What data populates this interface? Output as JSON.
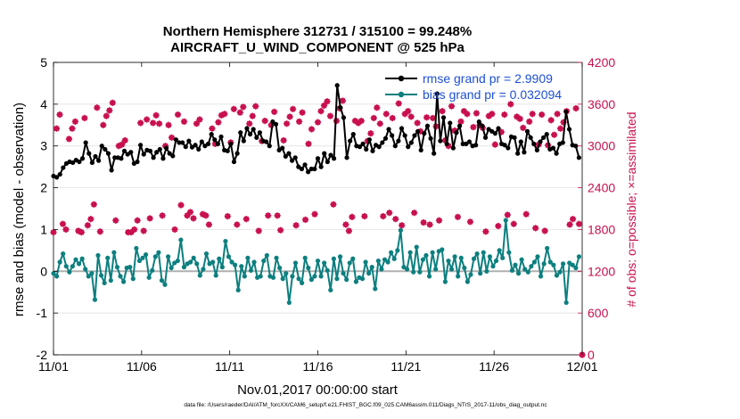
{
  "chart_data": {
    "type": "line",
    "title": "Northern Hemisphere 312731 / 315100 = 99.248%",
    "subtitle": "AIRCRAFT_U_WIND_COMPONENT @ 525 hPa",
    "xlabel": "Nov.01,2017 00:00:00 start",
    "ylabel": "rmse and bias (model - observation)",
    "y2label": "# of obs: o=possible; ×=assimilated",
    "footer": "data file: /Users/raeder/DAI/ATM_forcXX/CAM6_setup/f.e21.FHIST_BGC.f09_025.CAM6assim.011/Diags_NTrS_2017-11/obs_diag_output.nc",
    "x_ticks": [
      {
        "value": 0,
        "label": "11/01"
      },
      {
        "value": 5,
        "label": "11/06"
      },
      {
        "value": 10,
        "label": "11/11"
      },
      {
        "value": 15,
        "label": "11/16"
      },
      {
        "value": 20,
        "label": "11/21"
      },
      {
        "value": 25,
        "label": "11/26"
      },
      {
        "value": 30,
        "label": "12/01"
      }
    ],
    "y_ticks": [
      {
        "value": -2,
        "label": "-2"
      },
      {
        "value": -1,
        "label": "-1"
      },
      {
        "value": 0,
        "label": "0"
      },
      {
        "value": 1,
        "label": "1"
      },
      {
        "value": 2,
        "label": "2"
      },
      {
        "value": 3,
        "label": "3"
      },
      {
        "value": 4,
        "label": "4"
      },
      {
        "value": 5,
        "label": "5"
      }
    ],
    "y2_ticks": [
      {
        "value": 0,
        "label": "0"
      },
      {
        "value": 600,
        "label": "600"
      },
      {
        "value": 1200,
        "label": "1200"
      },
      {
        "value": 1800,
        "label": "1800"
      },
      {
        "value": 2400,
        "label": "2400"
      },
      {
        "value": 3000,
        "label": "3000"
      },
      {
        "value": 3600,
        "label": "3600"
      },
      {
        "value": 4200,
        "label": "4200"
      }
    ],
    "xlim": [
      0,
      30
    ],
    "ylim": [
      -2,
      5
    ],
    "y2lim": [
      0,
      4200
    ],
    "legend_position": "top-right",
    "colors": {
      "rmse": "#000000",
      "bias": "#0d7f7f",
      "obs": "#c8104f",
      "zero_line": "#b0b0b0",
      "grid": "#dddddd",
      "legend_text": "#1d4fd6"
    },
    "series": [
      {
        "name": "rmse grand pr = 2.9909",
        "key": "rmse",
        "values": [
          2.28,
          2.25,
          2.32,
          2.48,
          2.58,
          2.62,
          2.6,
          2.66,
          2.62,
          2.7,
          3.08,
          2.82,
          2.6,
          2.75,
          2.65,
          3.0,
          2.92,
          2.82,
          2.42,
          2.72,
          2.72,
          2.7,
          2.88,
          2.8,
          2.85,
          2.58,
          2.62,
          3.02,
          2.8,
          2.9,
          2.88,
          2.72,
          2.85,
          2.92,
          2.7,
          2.95,
          2.82,
          2.76,
          3.15,
          3.08,
          3.08,
          2.98,
          3.12,
          2.97,
          3.02,
          2.92,
          3.1,
          3.0,
          3.05,
          3.28,
          3.15,
          3.05,
          3.22,
          2.9,
          2.88,
          3.05,
          2.62,
          2.82,
          3.32,
          3.12,
          3.42,
          3.28,
          3.4,
          3.2,
          3.32,
          3.12,
          3.1,
          3.0,
          3.58,
          3.52,
          2.9,
          2.95,
          2.75,
          2.82,
          2.65,
          2.72,
          2.5,
          2.45,
          2.55,
          2.38,
          2.45,
          2.45,
          2.7,
          2.5,
          2.82,
          2.62,
          2.78,
          2.7,
          4.45,
          3.92,
          3.68,
          2.72,
          3.12,
          3.28,
          3.0,
          2.98,
          3.05,
          2.92,
          3.15,
          2.88,
          3.02,
          2.98,
          3.08,
          3.18,
          3.4,
          3.25,
          3.0,
          3.12,
          3.42,
          3.25,
          2.98,
          3.08,
          3.25,
          3.35,
          2.9,
          3.3,
          3.48,
          3.18,
          2.82,
          4.25,
          3.12,
          3.68,
          3.05,
          3.55,
          2.95,
          3.32,
          3.48,
          3.05,
          3.05,
          3.1,
          3.0,
          3.02,
          3.58,
          3.48,
          3.2,
          3.4,
          3.35,
          3.3,
          3.42,
          3.05,
          3.02,
          2.95,
          3.22,
          3.2,
          2.82,
          3.1,
          2.85,
          3.35,
          3.2,
          3.05,
          2.9,
          3.1,
          3.2,
          3.28,
          2.92,
          2.95,
          2.82,
          3.05,
          3.08,
          3.82,
          3.4,
          3.02,
          3.0,
          2.72
        ]
      },
      {
        "name": "bias grand pr = 0.032094",
        "key": "bias",
        "values": [
          -0.05,
          -0.12,
          0.22,
          0.42,
          0.12,
          -0.02,
          0.12,
          0.28,
          0.18,
          0.3,
          0.05,
          -0.12,
          -0.05,
          -0.68,
          0.38,
          -0.1,
          -0.28,
          0.32,
          -0.22,
          0.45,
          0.1,
          -0.12,
          -0.25,
          0.08,
          0.1,
          -0.18,
          0.55,
          0.25,
          0.32,
          0.4,
          -0.15,
          0.02,
          0.35,
          0.45,
          -0.22,
          -0.32,
          0.35,
          0.08,
          0.2,
          0.25,
          0.75,
          0.1,
          0.18,
          0.22,
          0.32,
          0.18,
          -0.1,
          0.05,
          0.42,
          0.18,
          0.22,
          -0.1,
          0.3,
          0.1,
          0.72,
          0.35,
          0.22,
          0.15,
          -0.45,
          0.12,
          -0.12,
          0.32,
          0.02,
          0.22,
          -0.15,
          -0.12,
          0.25,
          0.38,
          -0.12,
          -0.15,
          0.32,
          0.08,
          -0.18,
          -0.05,
          -0.75,
          -0.12,
          0.2,
          -0.18,
          -0.28,
          0.32,
          0.08,
          -0.2,
          -0.12,
          0.25,
          -0.12,
          0.2,
          0.02,
          -0.45,
          0.3,
          -0.18,
          0.35,
          -0.05,
          -0.2,
          0.2,
          0.3,
          -0.25,
          -0.15,
          -0.18,
          0.22,
          -0.05,
          0.1,
          -0.42,
          0.25,
          0.05,
          0.28,
          0.22,
          0.45,
          0.3,
          0.5,
          0.98,
          0.1,
          0.05,
          0.45,
          -0.02,
          0.58,
          -0.02,
          0.28,
          0.38,
          -0.12,
          0.45,
          0.05,
          0.48,
          0.52,
          -0.25,
          0.25,
          0.05,
          0.35,
          -0.12,
          0.32,
          0.08,
          -0.25,
          -0.08,
          0.3,
          0.42,
          -0.05,
          0.45,
          0.0,
          0.35,
          0.12,
          0.25,
          0.5,
          0.32,
          1.22,
          0.45,
          0.02,
          0.15,
          -0.05,
          0.28,
          0.05,
          -0.02,
          0.12,
          0.22,
          0.35,
          -0.12,
          0.18,
          0.55,
          0.22,
          0.15,
          -0.1,
          -0.02,
          0.18,
          -0.75,
          0.2,
          0.15,
          0.08,
          0.35
        ]
      },
      {
        "name": "# of obs possible",
        "key": "obs_possible",
        "axis": "right",
        "values": [
          1760,
          3250,
          3450,
          1880,
          1800,
          3100,
          3250,
          3350,
          1780,
          1760,
          3400,
          1860,
          1950,
          2160,
          3550,
          1770,
          3300,
          3430,
          3510,
          3620,
          1930,
          3000,
          3020,
          3080,
          1760,
          1760,
          1800,
          1930,
          3330,
          1780,
          3380,
          1960,
          3330,
          3440,
          3320,
          2000,
          3000,
          3300,
          3120,
          1800,
          3450,
          2150,
          3350,
          2000,
          2050,
          1960,
          3320,
          3380,
          2020,
          2000,
          1870,
          3250,
          3030,
          3340,
          3440,
          3460,
          1990,
          3050,
          3530,
          1870,
          3480,
          3560,
          1950,
          3320,
          3430,
          3570,
          1780,
          3070,
          3360,
          2000,
          3300,
          3490,
          2000,
          1790,
          3080,
          3320,
          3420,
          3530,
          1860,
          3350,
          3480,
          1940,
          3030,
          3240,
          2020,
          3340,
          3500,
          3580,
          3640,
          3430,
          2160,
          3360,
          3540,
          3650,
          1870,
          1780,
          1980,
          3360,
          3330,
          3360,
          1990,
          3070,
          3180,
          3400,
          3550,
          3320,
          1990,
          3460,
          2040,
          3400,
          1950,
          3610,
          1860,
          3460,
          3500,
          3420,
          2040,
          3330,
          3210,
          1900,
          3410,
          1870,
          3400,
          3280,
          1930,
          3500,
          3080,
          3000,
          3570,
          3220,
          1980,
          3350,
          3500,
          3460,
          1910,
          3270,
          3470,
          3300,
          3260,
          1770,
          3430,
          3460,
          3020,
          1850,
          3200,
          3450,
          2010,
          3600,
          1880,
          3420,
          3390,
          3260,
          2020,
          3350,
          3460,
          1820,
          3020,
          3450,
          1780,
          3010,
          3370,
          3160,
          3460,
          3250,
          3340,
          3500,
          1870,
          1950,
          3540,
          1880
        ]
      }
    ]
  }
}
